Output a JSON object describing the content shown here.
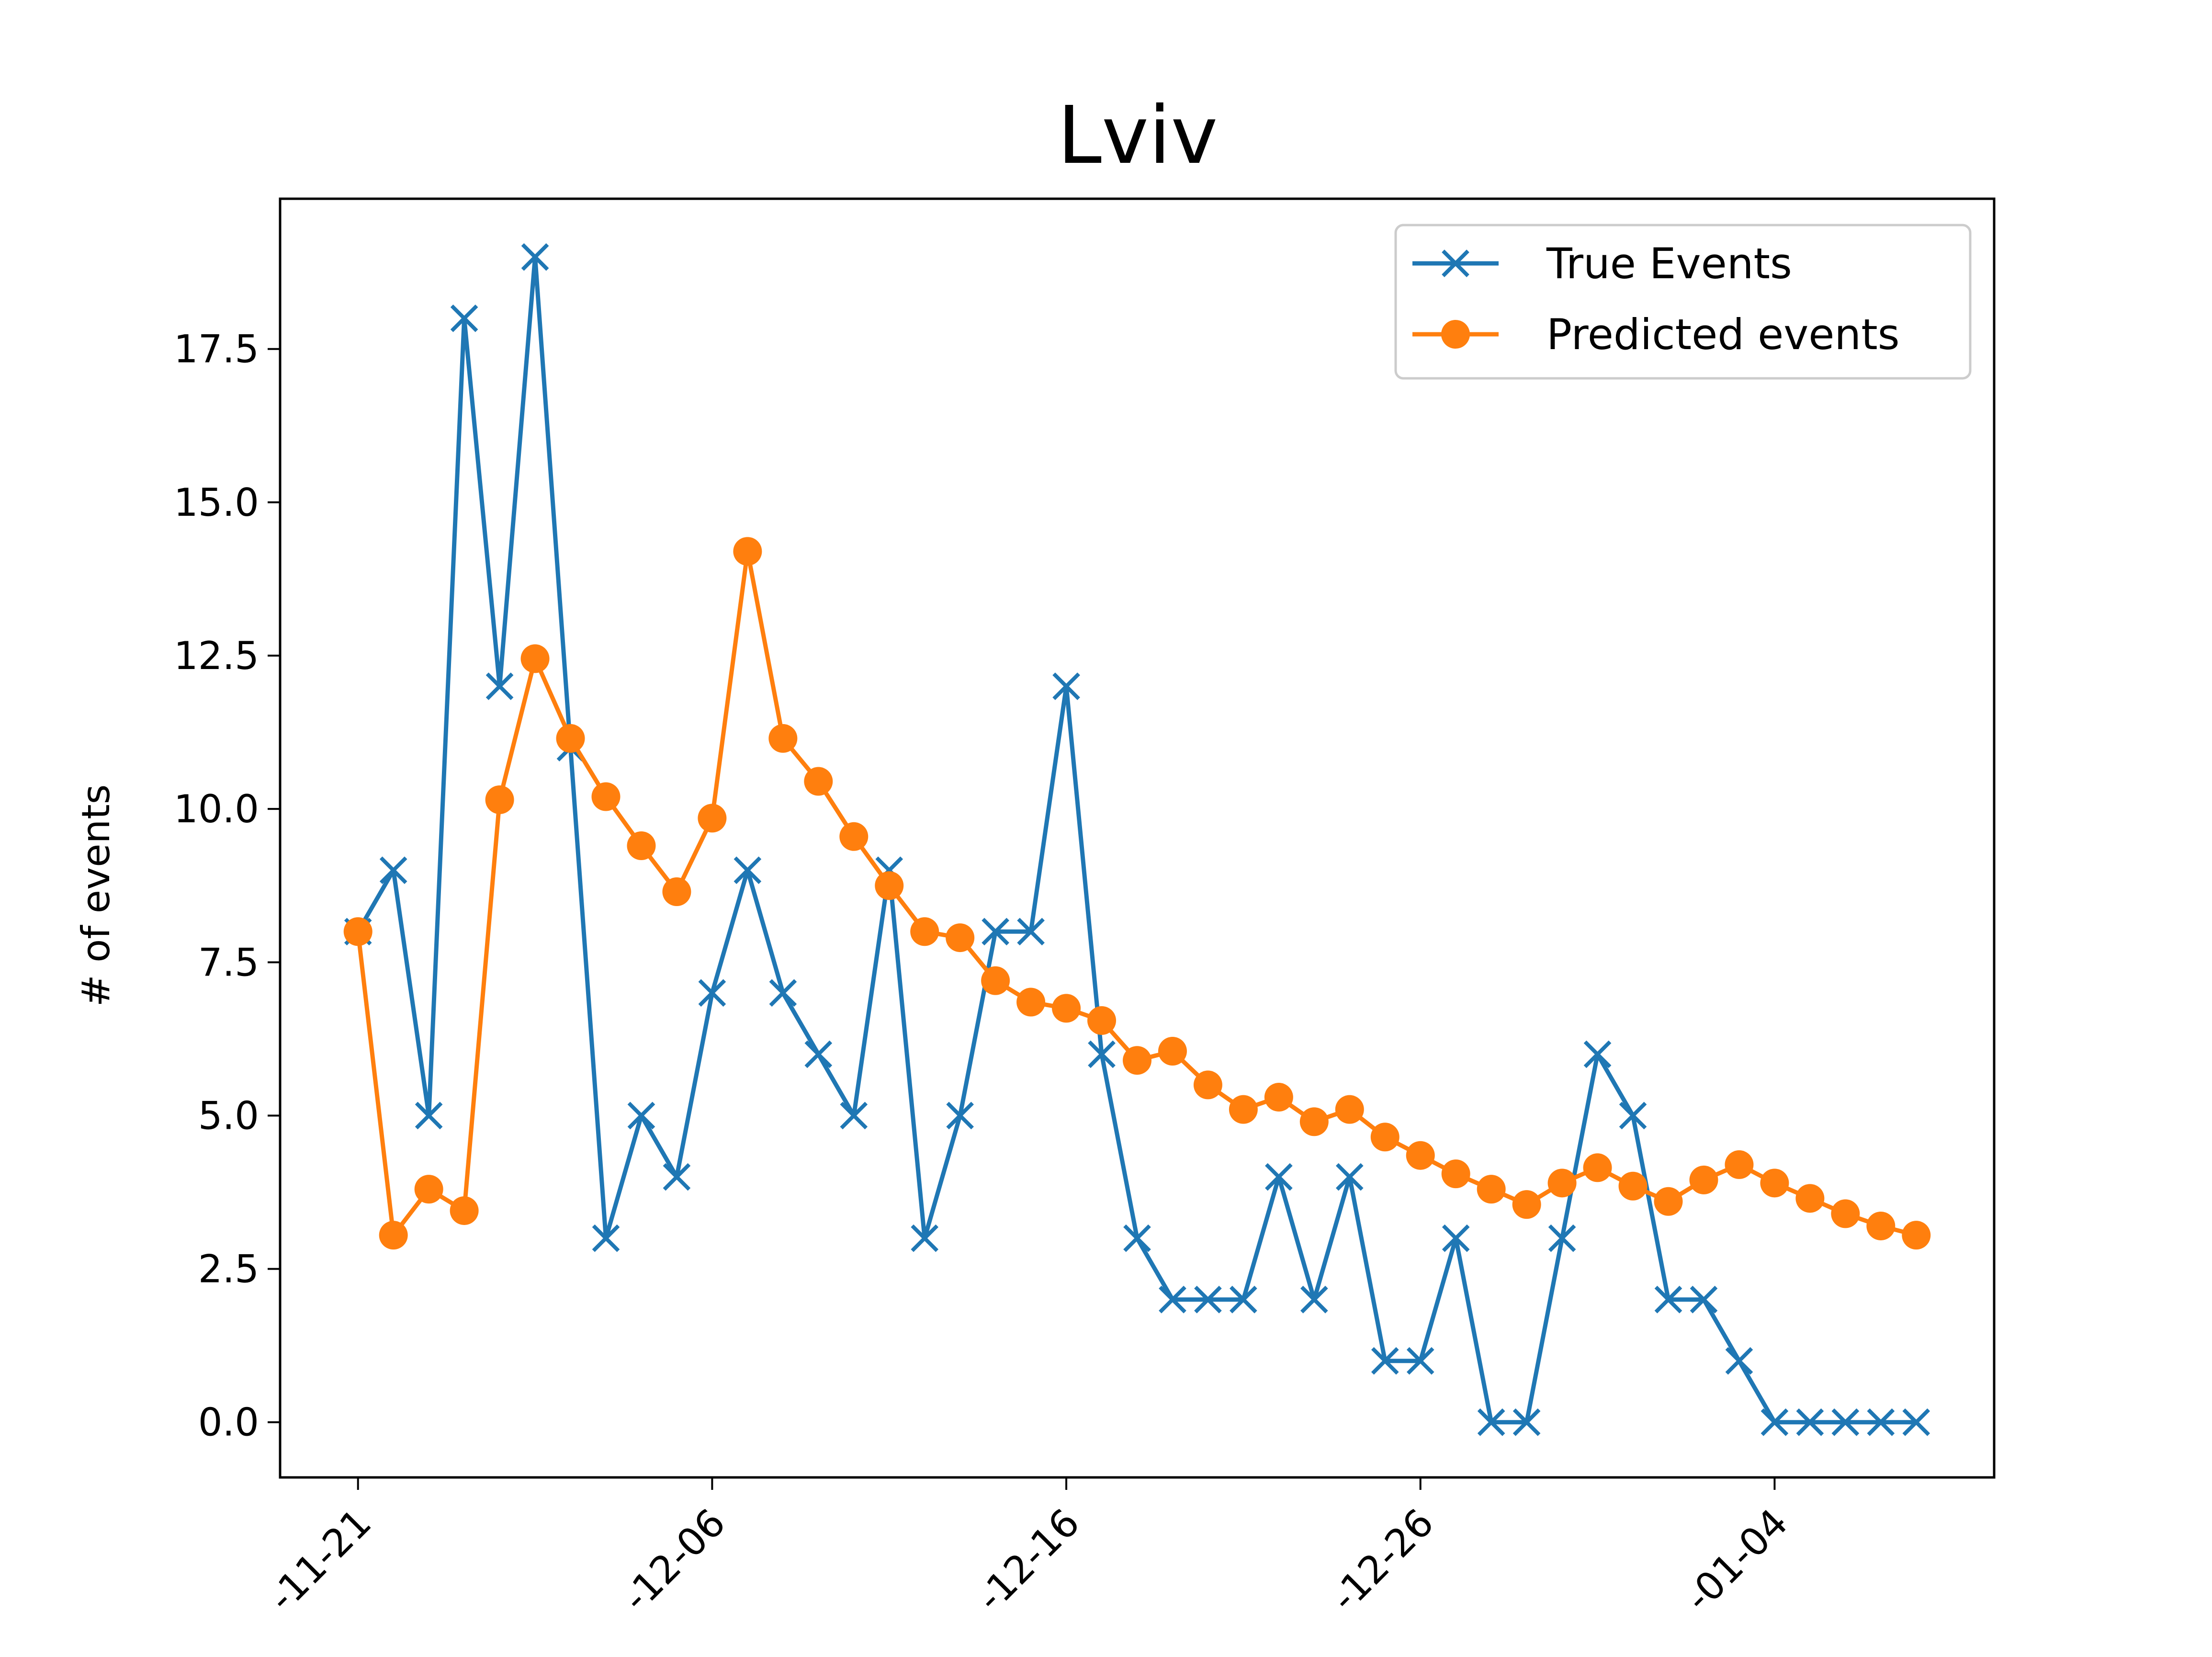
{
  "chart_data": {
    "type": "line",
    "title": "Lviv",
    "xlabel": "",
    "ylabel": "# of events",
    "ylim": [
      -0.9,
      19.95
    ],
    "y_ticks": [
      0.0,
      2.5,
      5.0,
      7.5,
      10.0,
      12.5,
      15.0,
      17.5
    ],
    "y_tick_labels": [
      "0.0",
      "2.5",
      "5.0",
      "7.5",
      "10.0",
      "12.5",
      "15.0",
      "17.5"
    ],
    "x_tick_indices": [
      0,
      10,
      20,
      30,
      40
    ],
    "x_tick_labels": [
      "-11-21",
      "-12-06",
      "-12-16",
      "-12-26",
      "-01-04"
    ],
    "xlim": [
      -2.2,
      46.2
    ],
    "grid": false,
    "legend_position": "top-right",
    "series": [
      {
        "name": "True Events",
        "color": "#1f77b4",
        "marker": "x",
        "values": [
          8,
          9,
          5,
          18,
          12,
          19,
          11,
          3,
          5,
          4,
          7,
          9,
          7,
          6,
          5,
          9,
          3,
          5,
          8,
          8,
          12,
          6,
          3,
          2,
          2,
          2,
          4,
          2,
          4,
          1,
          1,
          3,
          0,
          0,
          3,
          6,
          5,
          2,
          2,
          1,
          0,
          0,
          0,
          0,
          0
        ]
      },
      {
        "name": "Predicted events",
        "color": "#ff7f0e",
        "marker": "o",
        "values": [
          8.0,
          3.05,
          3.8,
          3.45,
          10.15,
          12.45,
          11.15,
          10.2,
          9.4,
          8.65,
          9.85,
          14.2,
          11.15,
          10.45,
          9.55,
          8.75,
          8.0,
          7.9,
          7.2,
          6.85,
          6.75,
          6.55,
          5.9,
          6.05,
          5.5,
          5.1,
          5.3,
          4.9,
          5.1,
          4.65,
          4.35,
          4.05,
          3.8,
          3.55,
          3.9,
          4.15,
          3.85,
          3.6,
          3.95,
          4.2,
          3.9,
          3.65,
          3.4,
          3.2,
          3.05
        ]
      }
    ]
  }
}
